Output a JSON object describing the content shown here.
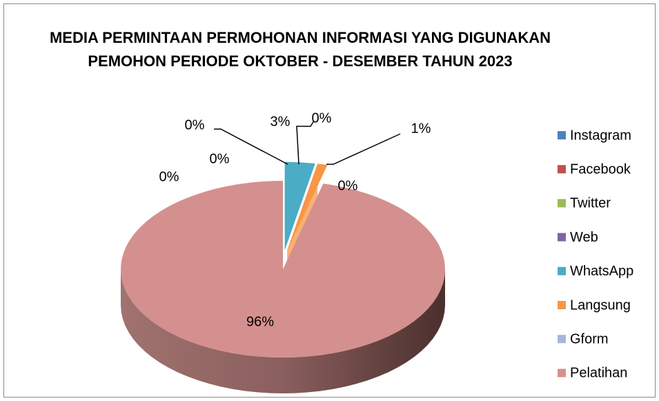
{
  "chart_data": {
    "type": "pie",
    "title": "MEDIA PERMINTAAN PERMOHONAN INFORMASI YANG DIGUNAKAN PEMOHON PERIODE OKTOBER - DESEMBER TAHUN 2023",
    "categories": [
      "Instagram",
      "Facebook",
      "Twitter",
      "Web",
      "WhatsApp",
      "Langsung",
      "Gform",
      "Pelatihan"
    ],
    "values": [
      0,
      0,
      0,
      0,
      3,
      1,
      0,
      96
    ],
    "value_labels": [
      "0%",
      "0%",
      "0%",
      "0%",
      "3%",
      "1%",
      "0%",
      "96%"
    ],
    "colors": [
      "#4f81bd",
      "#c0504d",
      "#9bbb59",
      "#8064a2",
      "#4bacc6",
      "#f79646",
      "#a5b7d9",
      "#d4908e"
    ],
    "legend": "right",
    "three_d": true
  }
}
